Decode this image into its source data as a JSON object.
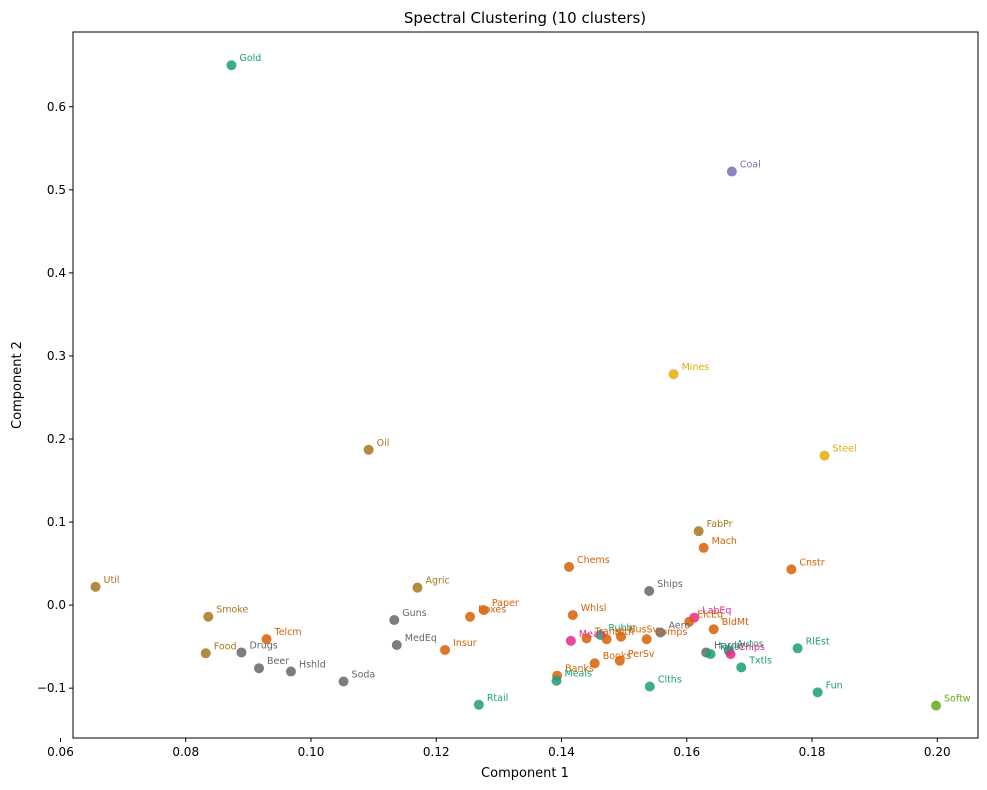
{
  "chart_data": {
    "type": "scatter",
    "title": "Spectral Clustering (10 clusters)",
    "xlabel": "Component 1",
    "ylabel": "Component 2",
    "xlim": [
      0.062,
      0.2065
    ],
    "ylim": [
      -0.16,
      0.69
    ],
    "xticks": [
      0.06,
      0.08,
      0.1,
      0.12,
      0.14,
      0.16,
      0.18,
      0.2
    ],
    "xtick_labels": [
      "0.06",
      "0.08",
      "0.10",
      "0.12",
      "0.14",
      "0.16",
      "0.18",
      "0.20"
    ],
    "yticks": [
      -0.1,
      0.0,
      0.1,
      0.2,
      0.3,
      0.4,
      0.5,
      0.6
    ],
    "ytick_labels": [
      "−0.1",
      "0.0",
      "0.1",
      "0.2",
      "0.3",
      "0.4",
      "0.5",
      "0.6"
    ],
    "grid": false,
    "colors": {
      "teal": "#1b9e77",
      "orange": "#d95f02",
      "purple": "#7570b3",
      "pink": "#e7298a",
      "green": "#66a61e",
      "yellow": "#e6ab02",
      "brown": "#a6761d",
      "gray": "#666666"
    },
    "points": [
      {
        "label": "Gold",
        "x": 0.0873,
        "y": 0.65,
        "color": "teal"
      },
      {
        "label": "Coal",
        "x": 0.1672,
        "y": 0.522,
        "color": "purple"
      },
      {
        "label": "Mines",
        "x": 0.1579,
        "y": 0.278,
        "color": "yellow"
      },
      {
        "label": "Oil",
        "x": 0.1092,
        "y": 0.187,
        "color": "brown"
      },
      {
        "label": "Steel",
        "x": 0.182,
        "y": 0.18,
        "color": "yellow"
      },
      {
        "label": "FabPr",
        "x": 0.1619,
        "y": 0.089,
        "color": "brown"
      },
      {
        "label": "Mach",
        "x": 0.1627,
        "y": 0.069,
        "color": "orange"
      },
      {
        "label": "Chems",
        "x": 0.1412,
        "y": 0.046,
        "color": "orange"
      },
      {
        "label": "Cnstr",
        "x": 0.1767,
        "y": 0.043,
        "color": "orange"
      },
      {
        "label": "Util",
        "x": 0.0656,
        "y": 0.022,
        "color": "brown"
      },
      {
        "label": "Agric",
        "x": 0.117,
        "y": 0.021,
        "color": "brown"
      },
      {
        "label": "Ships",
        "x": 0.154,
        "y": 0.017,
        "color": "gray"
      },
      {
        "label": "Paper",
        "x": 0.1276,
        "y": -0.006,
        "color": "orange"
      },
      {
        "label": "Boxes",
        "x": 0.1254,
        "y": -0.014,
        "color": "orange"
      },
      {
        "label": "Whlsl",
        "x": 0.1418,
        "y": -0.012,
        "color": "orange"
      },
      {
        "label": "Smoke",
        "x": 0.0836,
        "y": -0.014,
        "color": "brown"
      },
      {
        "label": "Guns",
        "x": 0.1133,
        "y": -0.018,
        "color": "gray"
      },
      {
        "label": "LabEq",
        "x": 0.1612,
        "y": -0.015,
        "color": "pink"
      },
      {
        "label": "ElcEq",
        "x": 0.1604,
        "y": -0.02,
        "color": "orange"
      },
      {
        "label": "BldMt",
        "x": 0.1643,
        "y": -0.029,
        "color": "orange"
      },
      {
        "label": "Aero",
        "x": 0.1558,
        "y": -0.033,
        "color": "gray"
      },
      {
        "label": "Rubbr",
        "x": 0.1462,
        "y": -0.036,
        "color": "teal"
      },
      {
        "label": "BusSv",
        "x": 0.1495,
        "y": -0.038,
        "color": "orange"
      },
      {
        "label": "Trans",
        "x": 0.144,
        "y": -0.04,
        "color": "orange"
      },
      {
        "label": "Hlth",
        "x": 0.1472,
        "y": -0.041,
        "color": "orange"
      },
      {
        "label": "Comps",
        "x": 0.1536,
        "y": -0.041,
        "color": "orange"
      },
      {
        "label": "Telcm",
        "x": 0.0929,
        "y": -0.041,
        "color": "orange"
      },
      {
        "label": "Meals",
        "x": 0.1415,
        "y": -0.043,
        "color": "pink"
      },
      {
        "label": "MedEq",
        "x": 0.1137,
        "y": -0.048,
        "color": "gray"
      },
      {
        "label": "Insur",
        "x": 0.1214,
        "y": -0.054,
        "color": "orange"
      },
      {
        "label": "RlEst",
        "x": 0.1777,
        "y": -0.052,
        "color": "teal"
      },
      {
        "label": "Food",
        "x": 0.0832,
        "y": -0.058,
        "color": "brown"
      },
      {
        "label": "Drugs",
        "x": 0.0889,
        "y": -0.057,
        "color": "gray"
      },
      {
        "label": "Hardw",
        "x": 0.1631,
        "y": -0.057,
        "color": "gray"
      },
      {
        "label": "Autos",
        "x": 0.1667,
        "y": -0.055,
        "color": "teal"
      },
      {
        "label": "Toys",
        "x": 0.1638,
        "y": -0.059,
        "color": "teal"
      },
      {
        "label": "Chips",
        "x": 0.167,
        "y": -0.059,
        "color": "pink"
      },
      {
        "label": "PerSv",
        "x": 0.1493,
        "y": -0.067,
        "color": "orange"
      },
      {
        "label": "Books",
        "x": 0.1453,
        "y": -0.07,
        "color": "orange"
      },
      {
        "label": "Txtls",
        "x": 0.1687,
        "y": -0.075,
        "color": "teal"
      },
      {
        "label": "Beer",
        "x": 0.0917,
        "y": -0.076,
        "color": "gray"
      },
      {
        "label": "Hshld",
        "x": 0.0968,
        "y": -0.08,
        "color": "gray"
      },
      {
        "label": "Banks",
        "x": 0.1393,
        "y": -0.085,
        "color": "orange"
      },
      {
        "label": "Meals",
        "x": 0.1392,
        "y": -0.091,
        "color": "teal"
      },
      {
        "label": "Soda",
        "x": 0.1052,
        "y": -0.092,
        "color": "gray"
      },
      {
        "label": "Clths",
        "x": 0.1541,
        "y": -0.098,
        "color": "teal"
      },
      {
        "label": "Fun",
        "x": 0.1809,
        "y": -0.105,
        "color": "teal"
      },
      {
        "label": "Rtail",
        "x": 0.1268,
        "y": -0.12,
        "color": "teal"
      },
      {
        "label": "Softw",
        "x": 0.1998,
        "y": -0.121,
        "color": "green"
      }
    ]
  }
}
